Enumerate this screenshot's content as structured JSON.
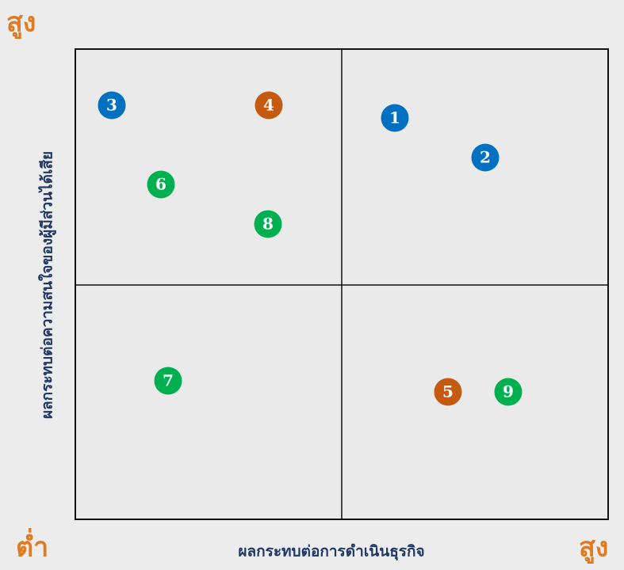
{
  "labels": {
    "y_high": "สูง",
    "low": "ต่ำ",
    "x_high": "สูง",
    "x_axis": "ผลกระทบต่อการดำเนินธุรกิจ",
    "y_axis": "ผลกระทบต่อความสนใจของผู้มีส่วนได้เสีย"
  },
  "nodes": [
    {
      "label": "1",
      "color": "#0070c0"
    },
    {
      "label": "2",
      "color": "#0070c0"
    },
    {
      "label": "3",
      "color": "#0070c0"
    },
    {
      "label": "4",
      "color": "#c55a11"
    },
    {
      "label": "5",
      "color": "#c55a11"
    },
    {
      "label": "6",
      "color": "#00b050"
    },
    {
      "label": "7",
      "color": "#00b050"
    },
    {
      "label": "8",
      "color": "#00b050"
    },
    {
      "label": "9",
      "color": "#00b050"
    }
  ]
}
